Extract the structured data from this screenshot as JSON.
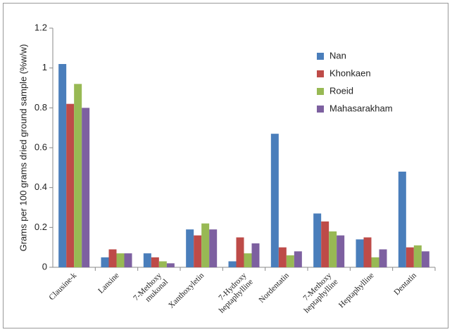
{
  "chart_data": {
    "type": "bar",
    "y_label": "Grams per 100 grams dried ground sample (%w/w)",
    "categories": [
      "Clausine-k",
      "Lansine",
      "7-Methoxy mukonal",
      "Xanthoxyletin",
      "7-Hydroxy heptaphylline",
      "Nordentatin",
      "7-Methoxy heptaphylline",
      "Heptaphylline",
      "Dentatin"
    ],
    "series": [
      {
        "name": "Nan",
        "color": "#4a7ebb",
        "values": [
          1.02,
          0.05,
          0.07,
          0.19,
          0.03,
          0.67,
          0.27,
          0.14,
          0.48
        ]
      },
      {
        "name": "Khonkaen",
        "color": "#be4b48",
        "values": [
          0.82,
          0.09,
          0.05,
          0.16,
          0.15,
          0.1,
          0.23,
          0.15,
          0.1
        ]
      },
      {
        "name": "Roeid",
        "color": "#98b954",
        "values": [
          0.92,
          0.07,
          0.03,
          0.22,
          0.07,
          0.06,
          0.18,
          0.05,
          0.11
        ]
      },
      {
        "name": "Mahasarakham",
        "color": "#7d60a0",
        "values": [
          0.8,
          0.07,
          0.02,
          0.19,
          0.12,
          0.08,
          0.16,
          0.09,
          0.08
        ]
      }
    ],
    "ylim": [
      0,
      1.2
    ],
    "yticks": [
      0,
      0.2,
      0.4,
      0.6,
      0.8,
      1,
      1.2
    ],
    "grid": false,
    "legend": "upper right"
  }
}
